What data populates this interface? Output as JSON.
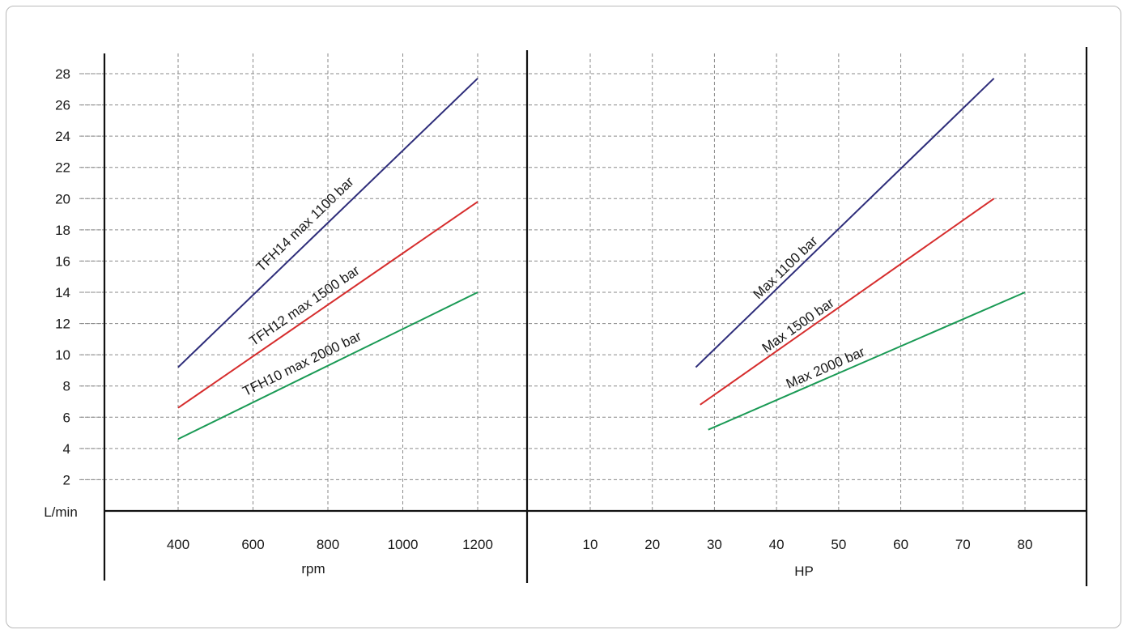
{
  "y_unit_label": "L/min",
  "chart_data": [
    {
      "type": "line",
      "xlabel": "rpm",
      "ylabel": "L/min",
      "x_ticks": [
        400,
        600,
        800,
        1000,
        1200
      ],
      "y_ticks": [
        2,
        4,
        6,
        8,
        10,
        12,
        14,
        16,
        18,
        20,
        22,
        24,
        26,
        28
      ],
      "xlim": [
        200,
        1320
      ],
      "ylim": [
        0,
        29
      ],
      "grid": true,
      "series": [
        {
          "name": "TFH14 max 1100 bar",
          "color": "#2e2d7a",
          "x": [
            400,
            1200
          ],
          "y": [
            9.2,
            27.7
          ]
        },
        {
          "name": "TFH12 max 1500 bar",
          "color": "#d62d2d",
          "x": [
            400,
            1200
          ],
          "y": [
            6.6,
            19.8
          ]
        },
        {
          "name": "TFH10 max 2000 bar",
          "color": "#1a9a55",
          "x": [
            400,
            1200
          ],
          "y": [
            4.6,
            14.0
          ]
        }
      ]
    },
    {
      "type": "line",
      "xlabel": "HP",
      "ylabel": "L/min",
      "x_ticks": [
        10,
        20,
        30,
        40,
        50,
        60,
        70,
        80
      ],
      "y_ticks": [
        2,
        4,
        6,
        8,
        10,
        12,
        14,
        16,
        18,
        20,
        22,
        24,
        26,
        28
      ],
      "xlim": [
        0,
        90
      ],
      "ylim": [
        0,
        29
      ],
      "grid": true,
      "series": [
        {
          "name": "Max 1100 bar",
          "color": "#2e2d7a",
          "x": [
            27,
            75
          ],
          "y": [
            9.2,
            27.7
          ]
        },
        {
          "name": "Max 1500 bar",
          "color": "#d62d2d",
          "x": [
            27.7,
            75
          ],
          "y": [
            6.8,
            20.0
          ]
        },
        {
          "name": "Max 2000 bar",
          "color": "#1a9a55",
          "x": [
            29,
            80
          ],
          "y": [
            5.2,
            14.0
          ]
        }
      ]
    }
  ]
}
